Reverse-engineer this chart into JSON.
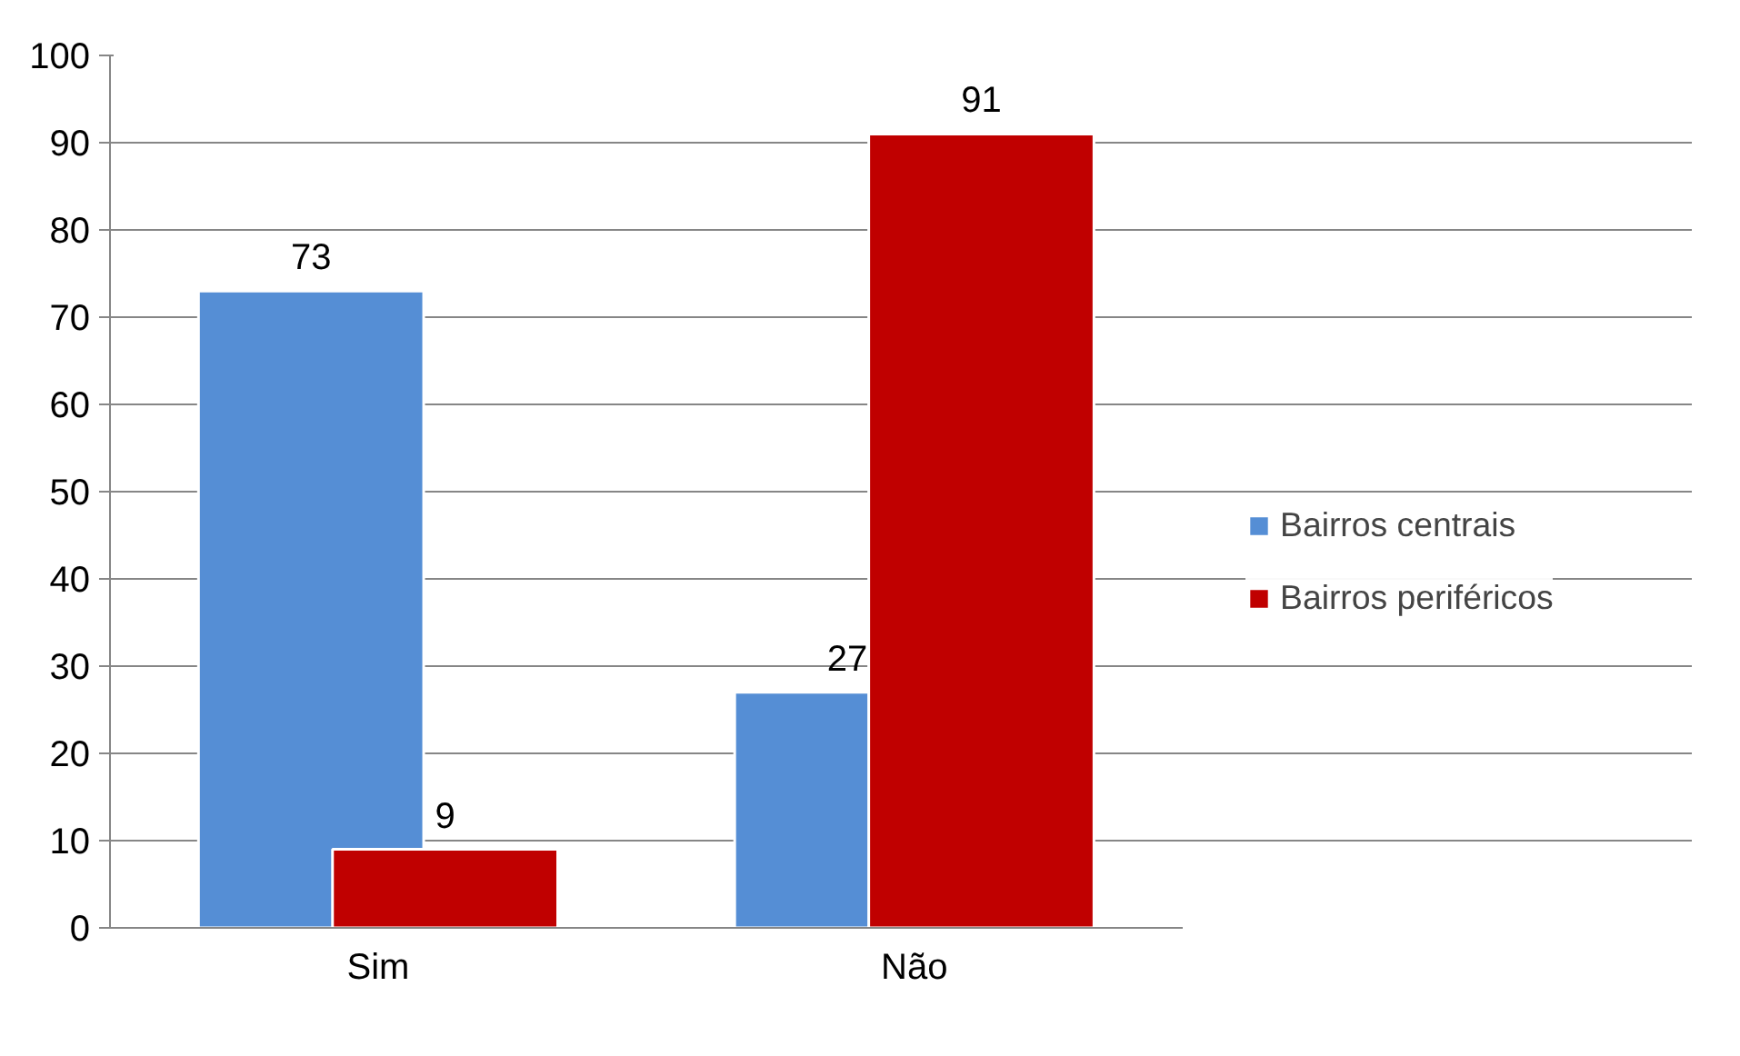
{
  "chart_data": {
    "type": "bar",
    "categories": [
      "Sim",
      "Não"
    ],
    "series": [
      {
        "name": "Bairros centrais",
        "color": "#558ed5",
        "values": [
          73,
          27
        ]
      },
      {
        "name": "Bairros periféricos",
        "color": "#c00000",
        "values": [
          9,
          91
        ]
      }
    ],
    "ylim": [
      0,
      100
    ],
    "yticks": [
      0,
      10,
      20,
      30,
      40,
      50,
      60,
      70,
      80,
      90,
      100
    ],
    "grid": "y",
    "legend": "right",
    "data_labels": true
  }
}
